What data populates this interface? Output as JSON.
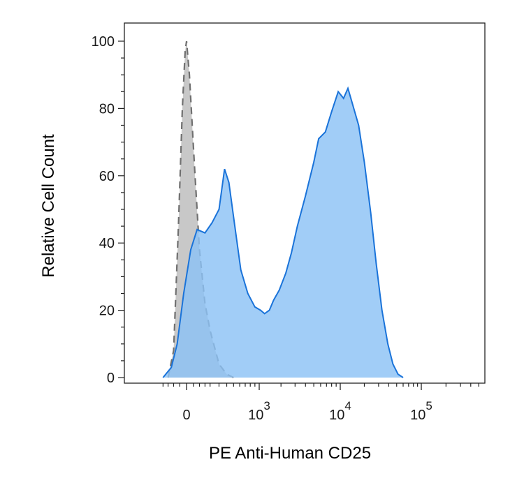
{
  "chart_data": {
    "type": "area",
    "title": "",
    "xlabel": "PE Anti-Human CD25",
    "ylabel": "Relative Cell Count",
    "ylim": [
      0,
      100
    ],
    "y_ticks": [
      "0",
      "20",
      "40",
      "60",
      "80",
      "100"
    ],
    "x_ticks": [
      {
        "base": "0",
        "exp": ""
      },
      {
        "base": "10",
        "exp": "3"
      },
      {
        "base": "10",
        "exp": "4"
      },
      {
        "base": "10",
        "exp": "5"
      }
    ],
    "x_scale": "biexponential",
    "grid": false,
    "legend": "none",
    "series": [
      {
        "role": "isotype control",
        "style": "dashed outline, gray fill",
        "fill": "#c8c8c8",
        "stroke": "#707070",
        "points": [
          [
            -150,
            0
          ],
          [
            -100,
            8
          ],
          [
            -60,
            45
          ],
          [
            -30,
            80
          ],
          [
            -10,
            97
          ],
          [
            0,
            100
          ],
          [
            20,
            90
          ],
          [
            60,
            62
          ],
          [
            100,
            38
          ],
          [
            150,
            22
          ],
          [
            200,
            14
          ],
          [
            300,
            4
          ],
          [
            400,
            1
          ],
          [
            500,
            0
          ]
        ]
      },
      {
        "role": "stained sample",
        "style": "solid outline, blue fill",
        "fill": "#8cc2f5",
        "stroke": "#1a73d9",
        "points": [
          [
            -200,
            0
          ],
          [
            -120,
            3
          ],
          [
            -70,
            10
          ],
          [
            -20,
            25
          ],
          [
            30,
            38
          ],
          [
            80,
            44
          ],
          [
            150,
            43
          ],
          [
            220,
            46
          ],
          [
            300,
            50
          ],
          [
            370,
            62
          ],
          [
            430,
            58
          ],
          [
            520,
            45
          ],
          [
            620,
            32
          ],
          [
            750,
            25
          ],
          [
            900,
            21
          ],
          [
            1050,
            20
          ],
          [
            1200,
            19
          ],
          [
            1400,
            20
          ],
          [
            1600,
            23
          ],
          [
            1900,
            26
          ],
          [
            2300,
            31
          ],
          [
            2700,
            37
          ],
          [
            3200,
            45
          ],
          [
            4000,
            54
          ],
          [
            5000,
            64
          ],
          [
            5700,
            71
          ],
          [
            6800,
            73
          ],
          [
            8000,
            79
          ],
          [
            9500,
            85
          ],
          [
            11000,
            83
          ],
          [
            12500,
            86
          ],
          [
            14000,
            82
          ],
          [
            17000,
            75
          ],
          [
            20000,
            64
          ],
          [
            24000,
            49
          ],
          [
            28000,
            34
          ],
          [
            33000,
            20
          ],
          [
            39000,
            10
          ],
          [
            45000,
            4
          ],
          [
            52000,
            1
          ],
          [
            60000,
            0
          ]
        ]
      }
    ]
  }
}
